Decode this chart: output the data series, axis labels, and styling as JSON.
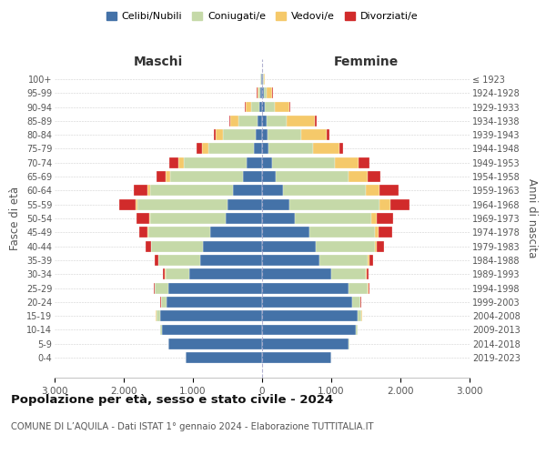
{
  "age_groups": [
    "0-4",
    "5-9",
    "10-14",
    "15-19",
    "20-24",
    "25-29",
    "30-34",
    "35-39",
    "40-44",
    "45-49",
    "50-54",
    "55-59",
    "60-64",
    "65-69",
    "70-74",
    "75-79",
    "80-84",
    "85-89",
    "90-94",
    "95-99",
    "100+"
  ],
  "birth_years": [
    "2019-2023",
    "2014-2018",
    "2009-2013",
    "2004-2008",
    "1999-2003",
    "1994-1998",
    "1989-1993",
    "1984-1988",
    "1979-1983",
    "1974-1978",
    "1969-1973",
    "1964-1968",
    "1959-1963",
    "1954-1958",
    "1949-1953",
    "1944-1948",
    "1939-1943",
    "1934-1938",
    "1929-1933",
    "1924-1928",
    "≤ 1923"
  ],
  "male": {
    "celibi": [
      1100,
      1350,
      1450,
      1480,
      1380,
      1350,
      1050,
      900,
      850,
      750,
      520,
      500,
      420,
      280,
      230,
      120,
      90,
      60,
      40,
      20,
      10
    ],
    "coniugati": [
      5,
      5,
      20,
      50,
      80,
      200,
      350,
      600,
      750,
      900,
      1100,
      1300,
      1200,
      1050,
      900,
      650,
      480,
      280,
      120,
      30,
      10
    ],
    "vedovi": [
      0,
      5,
      0,
      5,
      5,
      5,
      5,
      5,
      5,
      10,
      15,
      30,
      40,
      60,
      80,
      100,
      100,
      120,
      80,
      20,
      5
    ],
    "divorziati": [
      0,
      0,
      0,
      5,
      10,
      15,
      30,
      50,
      80,
      120,
      180,
      230,
      200,
      130,
      130,
      80,
      30,
      20,
      10,
      5,
      2
    ]
  },
  "female": {
    "nubili": [
      1000,
      1250,
      1350,
      1380,
      1300,
      1250,
      1000,
      830,
      780,
      680,
      480,
      400,
      300,
      200,
      150,
      90,
      80,
      60,
      40,
      20,
      10
    ],
    "coniugate": [
      5,
      10,
      30,
      60,
      120,
      280,
      500,
      700,
      850,
      950,
      1100,
      1300,
      1200,
      1050,
      900,
      650,
      480,
      300,
      150,
      50,
      10
    ],
    "vedove": [
      0,
      0,
      0,
      5,
      5,
      5,
      10,
      20,
      30,
      60,
      80,
      150,
      200,
      280,
      350,
      380,
      380,
      400,
      200,
      80,
      20
    ],
    "divorziate": [
      0,
      0,
      0,
      5,
      10,
      15,
      30,
      60,
      100,
      190,
      230,
      280,
      280,
      180,
      150,
      50,
      30,
      30,
      20,
      10,
      2
    ]
  },
  "colors": {
    "celibi": "#4472a8",
    "coniugati": "#c5d9a8",
    "vedovi": "#f5c96a",
    "divorziati": "#d12b2b"
  },
  "xlim": 3000,
  "title": "Popolazione per età, sesso e stato civile - 2024",
  "subtitle": "COMUNE DI L’AQUILA - Dati ISTAT 1° gennaio 2024 - Elaborazione TUTTITALIA.IT",
  "ylabel_left": "Fasce di età",
  "ylabel_right": "Anni di nascita",
  "xlabel_left": "Maschi",
  "xlabel_right": "Femmine",
  "legend_labels": [
    "Celibi/Nubili",
    "Coniugati/e",
    "Vedovi/e",
    "Divorziati/e"
  ],
  "background_color": "#ffffff",
  "grid_color": "#cccccc"
}
